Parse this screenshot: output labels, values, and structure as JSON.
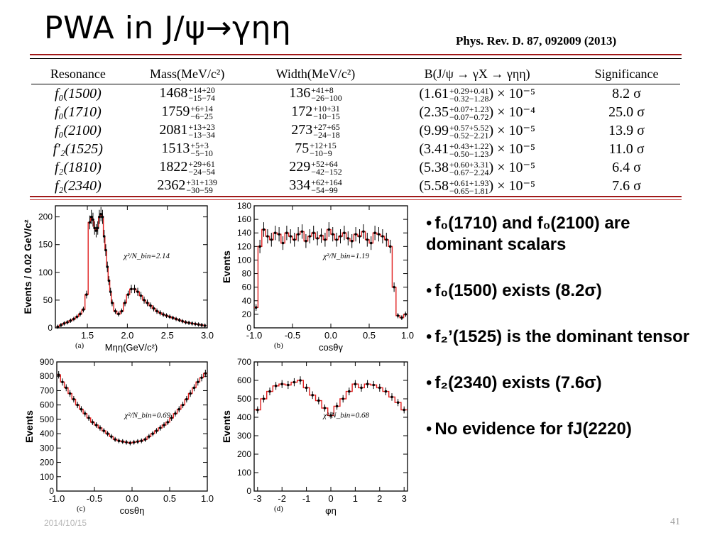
{
  "slide": {
    "title": "PWA in J/ψ→γηη",
    "reference": "Phys. Rev. D. 87, 092009 (2013)",
    "date": "2014/10/15",
    "page_number": "41"
  },
  "table": {
    "headers": [
      "Resonance",
      "Mass(MeV/c²)",
      "Width(MeV/c²)",
      "B(J/ψ → γX → γηη)",
      "Significance"
    ],
    "rows": [
      {
        "name": "f₀(1500)",
        "mass": "1468",
        "mass_up": "+14+20",
        "mass_dn": "−15−74",
        "width": "136",
        "width_up": "+41+8",
        "width_dn": "−26−100",
        "br": "(1.61",
        "br_up": "+0.29+0.41",
        "br_dn": "−0.32−1.28",
        "br_exp": ") × 10⁻⁵",
        "sig": "8.2 σ"
      },
      {
        "name": "f₀(1710)",
        "mass": "1759",
        "mass_up": "+6+14",
        "mass_dn": "−6−25",
        "width": "172",
        "width_up": "+10+31",
        "width_dn": "−10−15",
        "br": "(2.35",
        "br_up": "+0.07+1.23",
        "br_dn": "−0.07−0.72",
        "br_exp": ") × 10⁻⁴",
        "sig": "25.0 σ"
      },
      {
        "name": "f₀(2100)",
        "mass": "2081",
        "mass_up": "+13+23",
        "mass_dn": "−13−34",
        "width": "273",
        "width_up": "+27+65",
        "width_dn": "−24−18",
        "br": "(9.99",
        "br_up": "+0.57+5.52",
        "br_dn": "−0.52−2.21",
        "br_exp": ") × 10⁻⁵",
        "sig": "13.9 σ"
      },
      {
        "name": "f′₂(1525)",
        "mass": "1513",
        "mass_up": "+5+3",
        "mass_dn": "−5−10",
        "width": "75",
        "width_up": "+12+15",
        "width_dn": "−10−9",
        "br": "(3.41",
        "br_up": "+0.43+1.22",
        "br_dn": "−0.50−1.23",
        "br_exp": ") × 10⁻⁵",
        "sig": "11.0 σ"
      },
      {
        "name": "f₂(1810)",
        "mass": "1822",
        "mass_up": "+29+61",
        "mass_dn": "−24−54",
        "width": "229",
        "width_up": "+52+64",
        "width_dn": "−42−152",
        "br": "(5.38",
        "br_up": "+0.60+3.31",
        "br_dn": "−0.67−2.24",
        "br_exp": ") × 10⁻⁵",
        "sig": "6.4 σ"
      },
      {
        "name": "f₂(2340)",
        "mass": "2362",
        "mass_up": "+31+139",
        "mass_dn": "−30−59",
        "width": "334",
        "width_up": "+62+164",
        "width_dn": "−54−99",
        "br": "(5.58",
        "br_up": "+0.61+1.93",
        "br_dn": "−0.65−1.81",
        "br_exp": ") × 10⁻⁵",
        "sig": "7.6 σ"
      }
    ]
  },
  "bullets": [
    {
      "text": "f₀(1710) and f₀(2100) are dominant scalars"
    },
    {
      "text": "f₀(1500) exists (8.2σ)"
    },
    {
      "text": "f₂’(1525) is the dominant tensor"
    },
    {
      "text": "f₂(2340) exists (7.6σ)"
    },
    {
      "text": "No evidence for fJ(2220)"
    }
  ],
  "colors": {
    "fit_line": "#e02020",
    "rule": "#a01818",
    "data_points": "#000000"
  },
  "chart_data": [
    {
      "type": "line",
      "panel_label": "(a)",
      "xlabel": "Mηη(GeV/c²)",
      "ylabel": "Events / 0.02 GeV/c²",
      "chi2_label": "χ²/N_bin=2.14",
      "xlim": [
        1.1,
        3.0
      ],
      "ylim": [
        0,
        220
      ],
      "xticks": [
        "1.5",
        "2.0",
        "2.5",
        "3.0"
      ],
      "yticks": [
        "0",
        "50",
        "100",
        "150",
        "200"
      ],
      "x": [
        1.13,
        1.17,
        1.21,
        1.25,
        1.29,
        1.33,
        1.37,
        1.41,
        1.45,
        1.49,
        1.53,
        1.55,
        1.57,
        1.59,
        1.61,
        1.63,
        1.65,
        1.67,
        1.69,
        1.71,
        1.73,
        1.75,
        1.77,
        1.79,
        1.81,
        1.85,
        1.89,
        1.93,
        1.97,
        2.01,
        2.05,
        2.09,
        2.13,
        2.17,
        2.21,
        2.25,
        2.29,
        2.33,
        2.37,
        2.41,
        2.45,
        2.49,
        2.53,
        2.57,
        2.61,
        2.65,
        2.69,
        2.73,
        2.77,
        2.81,
        2.85,
        2.89,
        2.93,
        2.97
      ],
      "series": [
        {
          "values": [
            2,
            5,
            8,
            10,
            13,
            16,
            20,
            25,
            33,
            60,
            190,
            200,
            195,
            180,
            175,
            180,
            200,
            205,
            200,
            165,
            140,
            110,
            85,
            65,
            45,
            30,
            25,
            30,
            45,
            60,
            70,
            70,
            65,
            58,
            50,
            45,
            40,
            35,
            30,
            27,
            24,
            22,
            20,
            18,
            16,
            14,
            12,
            10,
            9,
            8,
            7,
            6,
            5,
            4
          ]
        }
      ]
    },
    {
      "type": "line",
      "panel_label": "(b)",
      "xlabel": "cosθγ",
      "ylabel": "Events",
      "chi2_label": "χ²/N_bin=1.19",
      "xlim": [
        -1.0,
        1.0
      ],
      "ylim": [
        0,
        180
      ],
      "xticks": [
        "-1.0",
        "-0.5",
        "0.0",
        "0.5",
        "1.0"
      ],
      "yticks": [
        "0",
        "20",
        "40",
        "60",
        "80",
        "100",
        "120",
        "140",
        "160",
        "180"
      ],
      "x": [
        -0.975,
        -0.925,
        -0.875,
        -0.825,
        -0.775,
        -0.725,
        -0.675,
        -0.625,
        -0.575,
        -0.525,
        -0.475,
        -0.425,
        -0.375,
        -0.325,
        -0.275,
        -0.225,
        -0.175,
        -0.125,
        -0.075,
        -0.025,
        0.025,
        0.075,
        0.125,
        0.175,
        0.225,
        0.275,
        0.325,
        0.375,
        0.425,
        0.475,
        0.525,
        0.575,
        0.625,
        0.675,
        0.725,
        0.775,
        0.825,
        0.875,
        0.925,
        0.975
      ],
      "series": [
        {
          "values": [
            30,
            120,
            145,
            135,
            130,
            140,
            138,
            125,
            140,
            135,
            130,
            138,
            142,
            128,
            135,
            140,
            132,
            136,
            130,
            145,
            138,
            130,
            135,
            140,
            132,
            128,
            138,
            135,
            142,
            130,
            125,
            140,
            138,
            135,
            130,
            120,
            60,
            18,
            15,
            20
          ]
        }
      ]
    },
    {
      "type": "line",
      "panel_label": "(c)",
      "xlabel": "cosθη",
      "ylabel": "Events",
      "chi2_label": "χ²/N_bin=0.69",
      "xlim": [
        -1.0,
        1.0
      ],
      "ylim": [
        0,
        900
      ],
      "xticks": [
        "-1.0",
        "-0.5",
        "0.0",
        "0.5",
        "1.0"
      ],
      "yticks": [
        "0",
        "100",
        "200",
        "300",
        "400",
        "500",
        "600",
        "700",
        "800",
        "900"
      ],
      "x": [
        -0.975,
        -0.925,
        -0.875,
        -0.825,
        -0.775,
        -0.725,
        -0.675,
        -0.625,
        -0.575,
        -0.525,
        -0.475,
        -0.425,
        -0.375,
        -0.325,
        -0.275,
        -0.225,
        -0.175,
        -0.125,
        -0.075,
        -0.025,
        0.025,
        0.075,
        0.125,
        0.175,
        0.225,
        0.275,
        0.325,
        0.375,
        0.425,
        0.475,
        0.525,
        0.575,
        0.625,
        0.675,
        0.725,
        0.775,
        0.825,
        0.875,
        0.925,
        0.975
      ],
      "series": [
        {
          "values": [
            810,
            760,
            720,
            680,
            640,
            600,
            570,
            540,
            510,
            480,
            460,
            440,
            420,
            400,
            380,
            360,
            350,
            345,
            340,
            335,
            340,
            345,
            350,
            360,
            380,
            400,
            420,
            440,
            460,
            480,
            510,
            540,
            570,
            600,
            640,
            680,
            720,
            760,
            790,
            820
          ]
        }
      ]
    },
    {
      "type": "line",
      "panel_label": "(d)",
      "xlabel": "φη",
      "ylabel": "Events",
      "chi2_label": "χ²/N_bin=0.68",
      "xlim": [
        -3.14,
        3.14
      ],
      "ylim": [
        0,
        700
      ],
      "xticks": [
        "-3",
        "-2",
        "-1",
        "0",
        "1",
        "2",
        "3"
      ],
      "yticks": [
        "0",
        "100",
        "200",
        "300",
        "400",
        "500",
        "600",
        "700"
      ],
      "x": [
        -3.0,
        -2.75,
        -2.5,
        -2.25,
        -2.0,
        -1.75,
        -1.5,
        -1.25,
        -1.0,
        -0.75,
        -0.5,
        -0.25,
        0.0,
        0.25,
        0.5,
        0.75,
        1.0,
        1.25,
        1.5,
        1.75,
        2.0,
        2.25,
        2.5,
        2.75,
        3.0
      ],
      "series": [
        {
          "values": [
            440,
            500,
            540,
            570,
            580,
            575,
            590,
            600,
            560,
            520,
            490,
            450,
            410,
            460,
            500,
            540,
            580,
            560,
            580,
            575,
            560,
            540,
            510,
            480,
            440
          ]
        }
      ]
    }
  ]
}
